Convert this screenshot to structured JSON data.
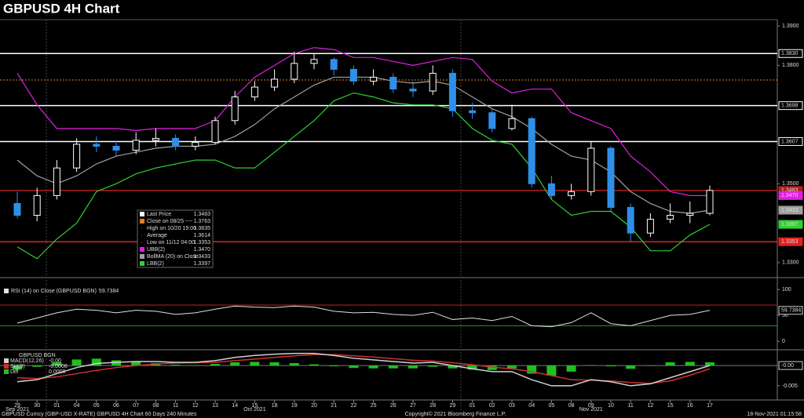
{
  "title": "GBPUSD 4H Chart",
  "footer": {
    "left": "GBPUSD Curncy (GBP-USD X-RATE) GBPUSD 4H Chart 60 Days 240 Minutes",
    "center": "Copyright© 2021 Bloomberg Finance L.P.",
    "right": "18-Nov-2021 01:15:58"
  },
  "chart_data": [
    {
      "type": "candlestick",
      "categories": [
        "29",
        "30",
        "01",
        "04",
        "05",
        "06",
        "07",
        "08",
        "11",
        "12",
        "13",
        "14",
        "15",
        "18",
        "19",
        "20",
        "21",
        "22",
        "25",
        "26",
        "27",
        "28",
        "29",
        "01",
        "02",
        "03",
        "04",
        "05",
        "08",
        "09",
        "10",
        "11",
        "12",
        "15",
        "16",
        "17"
      ],
      "category_groups": [
        "Sep 2021",
        null,
        null,
        null,
        null,
        null,
        null,
        null,
        null,
        null,
        null,
        null,
        "Oct 2021",
        null,
        null,
        null,
        null,
        null,
        null,
        null,
        null,
        null,
        null,
        null,
        null,
        null,
        null,
        null,
        null,
        "Nov 2021",
        null,
        null,
        null,
        null,
        null,
        null
      ],
      "open": [
        1.345,
        1.342,
        1.347,
        1.354,
        1.36,
        1.3595,
        1.3585,
        1.361,
        1.3615,
        1.3595,
        1.3605,
        1.366,
        1.372,
        1.3745,
        1.3765,
        1.3805,
        1.3815,
        1.379,
        1.376,
        1.377,
        1.374,
        1.3735,
        1.378,
        1.3685,
        1.368,
        1.364,
        1.3665,
        1.35,
        1.347,
        1.348,
        1.359,
        1.344,
        1.3375,
        1.341,
        1.342,
        1.3425
      ],
      "high": [
        1.348,
        1.349,
        1.356,
        1.3615,
        1.362,
        1.361,
        1.363,
        1.364,
        1.3625,
        1.362,
        1.367,
        1.3735,
        1.376,
        1.379,
        1.3835,
        1.383,
        1.382,
        1.38,
        1.379,
        1.378,
        1.376,
        1.38,
        1.379,
        1.3705,
        1.369,
        1.37,
        1.367,
        1.352,
        1.35,
        1.3607,
        1.3595,
        1.345,
        1.3425,
        1.345,
        1.3455,
        1.3495
      ],
      "low": [
        1.3412,
        1.3405,
        1.346,
        1.353,
        1.358,
        1.357,
        1.3575,
        1.3595,
        1.3585,
        1.3585,
        1.36,
        1.365,
        1.371,
        1.3735,
        1.3755,
        1.379,
        1.3775,
        1.375,
        1.375,
        1.373,
        1.372,
        1.3725,
        1.367,
        1.3665,
        1.363,
        1.3635,
        1.349,
        1.346,
        1.346,
        1.347,
        1.343,
        1.3353,
        1.3365,
        1.34,
        1.34,
        1.342
      ],
      "close": [
        1.342,
        1.347,
        1.354,
        1.36,
        1.3595,
        1.3585,
        1.361,
        1.3615,
        1.3595,
        1.3605,
        1.366,
        1.372,
        1.3745,
        1.3765,
        1.3805,
        1.3815,
        1.379,
        1.376,
        1.377,
        1.374,
        1.3735,
        1.378,
        1.3685,
        1.368,
        1.364,
        1.3665,
        1.35,
        1.347,
        1.348,
        1.359,
        1.344,
        1.3375,
        1.341,
        1.342,
        1.3425,
        1.3483
      ],
      "up_color": "#ffffff",
      "down_color": "#2f8fe8",
      "ylim": [
        1.3266,
        1.3916
      ],
      "yticks": [
        {
          "value": 1.39,
          "label": "1.3900"
        },
        {
          "value": 1.38,
          "label": "1.3800"
        },
        {
          "value": 1.35,
          "label": "1.3500"
        },
        {
          "value": 1.33,
          "label": "1.3300"
        }
      ],
      "upper_band": {
        "color": "#e020e0",
        "end_label": "1.3470",
        "values": [
          1.378,
          1.37,
          1.364,
          1.364,
          1.364,
          1.364,
          1.3635,
          1.364,
          1.364,
          1.364,
          1.366,
          1.372,
          1.377,
          1.38,
          1.383,
          1.3845,
          1.384,
          1.382,
          1.382,
          1.381,
          1.38,
          1.381,
          1.382,
          1.3815,
          1.376,
          1.373,
          1.374,
          1.374,
          1.368,
          1.366,
          1.364,
          1.357,
          1.353,
          1.348,
          1.347,
          1.347
        ]
      },
      "middle_band": {
        "color": "#a0a0a0",
        "end_label": "1.3433",
        "values": [
          1.356,
          1.352,
          1.35,
          1.352,
          1.355,
          1.357,
          1.358,
          1.359,
          1.3595,
          1.3595,
          1.36,
          1.362,
          1.365,
          1.369,
          1.372,
          1.375,
          1.377,
          1.377,
          1.377,
          1.376,
          1.3755,
          1.376,
          1.375,
          1.372,
          1.369,
          1.367,
          1.364,
          1.36,
          1.357,
          1.356,
          1.353,
          1.348,
          1.345,
          1.343,
          1.3425,
          1.3433
        ]
      },
      "lower_band": {
        "color": "#30d030",
        "end_label": "1.3397",
        "values": [
          1.334,
          1.331,
          1.336,
          1.34,
          1.348,
          1.35,
          1.3525,
          1.354,
          1.355,
          1.356,
          1.356,
          1.354,
          1.354,
          1.358,
          1.362,
          1.366,
          1.371,
          1.373,
          1.372,
          1.3705,
          1.37,
          1.37,
          1.369,
          1.364,
          1.361,
          1.36,
          1.354,
          1.346,
          1.342,
          1.343,
          1.343,
          1.339,
          1.333,
          1.333,
          1.337,
          1.3397
        ]
      },
      "hlines": [
        {
          "value": 1.383,
          "label": "1.3830",
          "color": "#ffffff"
        },
        {
          "value": 1.3763,
          "color": "#e08020",
          "dash": true
        },
        {
          "value": 1.3698,
          "label": "1.3698",
          "color": "#ffffff"
        },
        {
          "value": 1.3607,
          "label": "1.3607",
          "color": "#ffffff"
        },
        {
          "value": 1.3483,
          "label": "1.3483",
          "color": "#b02020"
        },
        {
          "value": 1.3353,
          "label": "1.3353",
          "color": "#e02020"
        }
      ],
      "stats": [
        {
          "name": "Last Price",
          "value": 1.3483,
          "color": "#ffffff"
        },
        {
          "name": "Close on 08/25 ----",
          "value": 1.3763,
          "color": "#e08020"
        },
        {
          "name": "High on 10/20 19:00",
          "value": 1.3835
        },
        {
          "name": "Average",
          "value": 1.3614
        },
        {
          "name": "Low on 11/12 04:00",
          "value": 1.3353
        },
        {
          "name": "UBB(2)",
          "value": 1.347,
          "value_label": "1.3470",
          "color": "#e020e0"
        },
        {
          "name": "BollMA (20)  on Close",
          "value": 1.3433,
          "color": "#a0a0a0"
        },
        {
          "name": "LBB(2)",
          "value": 1.3397,
          "color": "#30d030"
        }
      ]
    },
    {
      "type": "line",
      "title": "RSI (14)  on Close (GBPUSD BGN)",
      "last_label": "59.7384",
      "color": "#e0e0e0",
      "values": [
        35,
        45,
        55,
        62,
        60,
        55,
        60,
        58,
        52,
        55,
        62,
        68,
        66,
        65,
        68,
        66,
        58,
        55,
        56,
        52,
        50,
        56,
        42,
        45,
        40,
        48,
        30,
        28,
        36,
        55,
        34,
        30,
        40,
        50,
        52,
        59.7384
      ],
      "ylim": [
        -15,
        117
      ],
      "yticks": [
        0,
        50,
        100
      ],
      "levels": [
        {
          "value": 70,
          "color": "#c02020"
        },
        {
          "value": 30,
          "color": "#20a020"
        }
      ]
    },
    {
      "type": "macd",
      "title": "GBPUSD BGN",
      "ylim": [
        -0.0085,
        0.0037
      ],
      "yticks": [
        -0.005
      ],
      "macd": {
        "name": "MACD(12,26)",
        "value_label": "-0.00",
        "color": "#d0d0d0",
        "values": [
          -0.004,
          -0.0035,
          -0.002,
          -0.0005,
          0.0005,
          0.0008,
          0.001,
          0.001,
          0.0008,
          0.0008,
          0.0012,
          0.002,
          0.0025,
          0.0028,
          0.003,
          0.003,
          0.0025,
          0.0018,
          0.0014,
          0.001,
          0.0006,
          0.0008,
          0.0,
          -0.0008,
          -0.0015,
          -0.0015,
          -0.0035,
          -0.005,
          -0.005,
          -0.0035,
          -0.004,
          -0.005,
          -0.0045,
          -0.003,
          -0.0015,
          0
        ]
      },
      "signal": {
        "name": "Sig(9)",
        "value_label": "-0.0008",
        "color": "#d03030",
        "values": [
          -0.003,
          -0.0032,
          -0.0028,
          -0.002,
          -0.0012,
          -0.0005,
          0.0,
          0.0004,
          0.0006,
          0.0007,
          0.0008,
          0.0012,
          0.0016,
          0.002,
          0.0024,
          0.0027,
          0.0027,
          0.0024,
          0.0021,
          0.0017,
          0.0013,
          0.0011,
          0.0007,
          0.0002,
          -0.0004,
          -0.0008,
          -0.0015,
          -0.0025,
          -0.0035,
          -0.0036,
          -0.0038,
          -0.0042,
          -0.0044,
          -0.0038,
          -0.0024,
          -0.0008
        ]
      },
      "diff": {
        "name": "Diff",
        "value_label": "0.0008",
        "color": "#20c020",
        "values": [
          -0.001,
          -0.0003,
          0.0008,
          0.0015,
          0.0017,
          0.0013,
          0.001,
          0.0006,
          0.0002,
          0.0001,
          0.0004,
          0.0008,
          0.0009,
          0.0008,
          0.0006,
          0.0003,
          -0.0002,
          -0.0006,
          -0.0007,
          -0.0007,
          -0.0007,
          -0.0003,
          -0.0007,
          -0.001,
          -0.0011,
          -0.0007,
          -0.002,
          -0.0025,
          -0.0015,
          0.0001,
          -0.0002,
          -0.0008,
          -0.0001,
          0.0008,
          0.0009,
          0.0008
        ]
      }
    }
  ]
}
